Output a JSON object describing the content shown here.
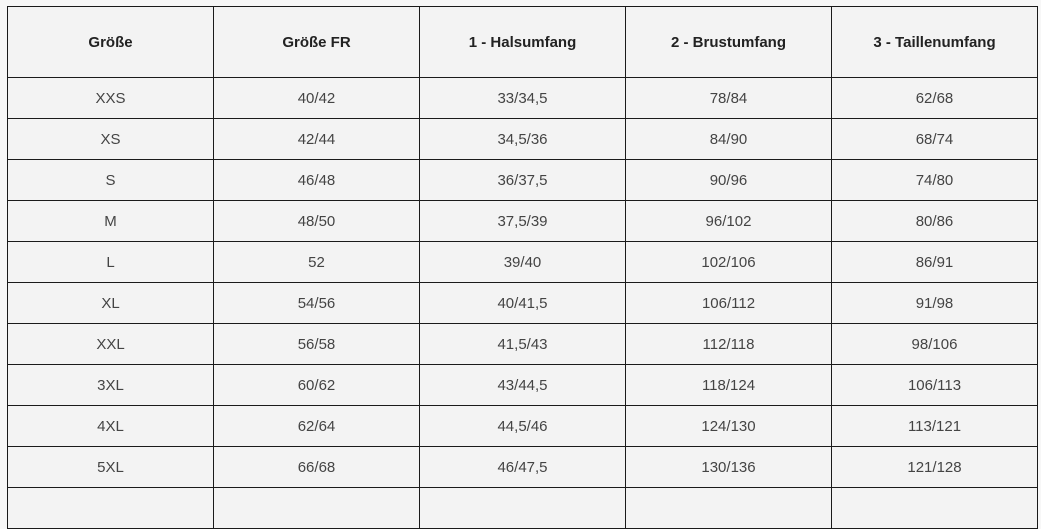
{
  "table": {
    "headers": [
      "Größe",
      "Größe FR",
      "1 - Halsumfang",
      "2 - Brustumfang",
      "3 - Taillenumfang"
    ],
    "rows": [
      [
        "XXS",
        "40/42",
        "33/34,5",
        "78/84",
        "62/68"
      ],
      [
        "XS",
        "42/44",
        "34,5/36",
        "84/90",
        "68/74"
      ],
      [
        "S",
        "46/48",
        "36/37,5",
        "90/96",
        "74/80"
      ],
      [
        "M",
        "48/50",
        "37,5/39",
        "96/102",
        "80/86"
      ],
      [
        "L",
        "52",
        "39/40",
        "102/106",
        "86/91"
      ],
      [
        "XL",
        "54/56",
        "40/41,5",
        "106/112",
        "91/98"
      ],
      [
        "XXL",
        "56/58",
        "41,5/43",
        "112/118",
        "98/106"
      ],
      [
        "3XL",
        "60/62",
        "43/44,5",
        "118/124",
        "106/113"
      ],
      [
        "4XL",
        "62/64",
        "44,5/46",
        "124/130",
        "113/121"
      ],
      [
        "5XL",
        "66/68",
        "46/47,5",
        "130/136",
        "121/128"
      ]
    ]
  }
}
